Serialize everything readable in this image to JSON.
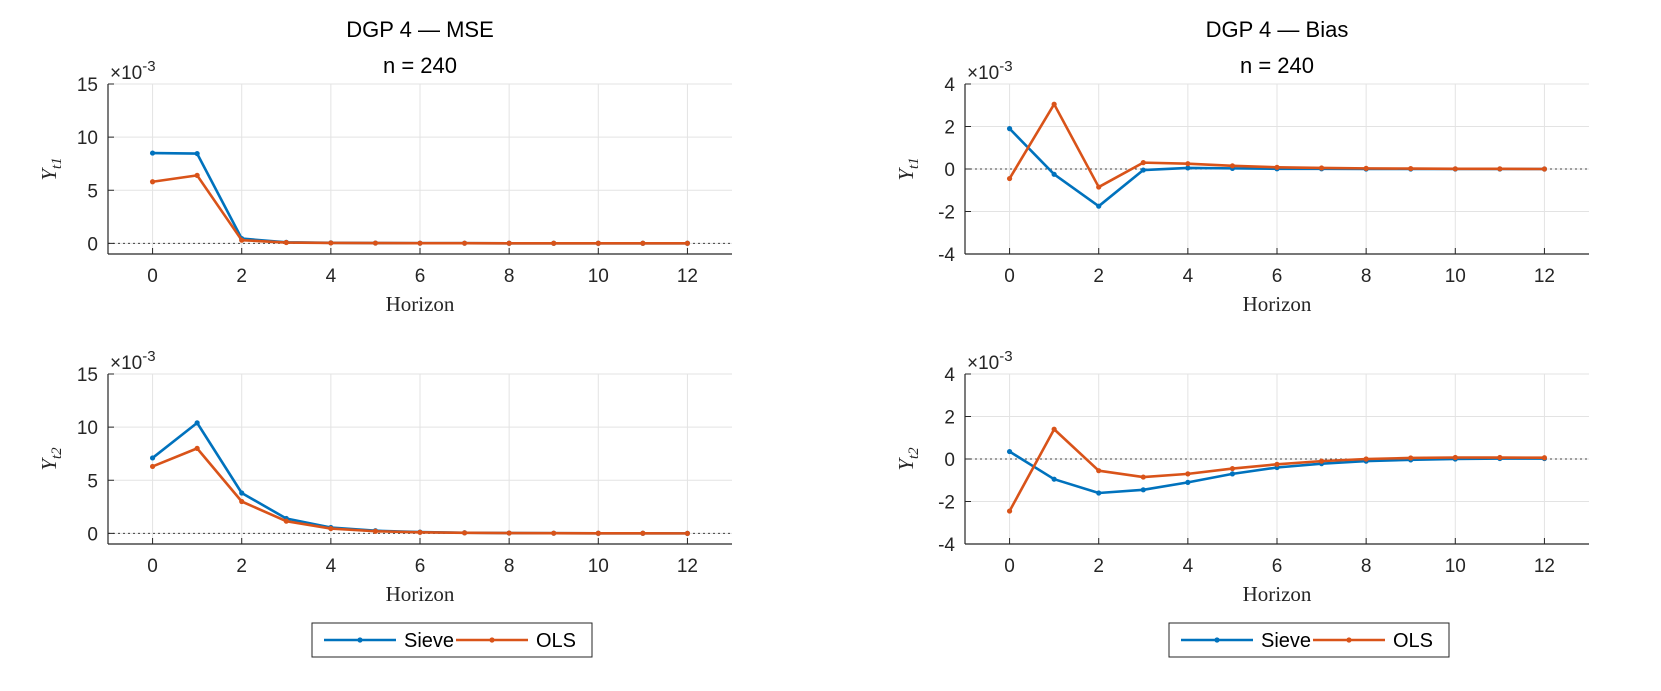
{
  "figure": {
    "legends": [
      {
        "entries": [
          "Sieve",
          "OLS"
        ]
      },
      {
        "entries": [
          "Sieve",
          "OLS"
        ]
      }
    ]
  },
  "colors": {
    "sieve": "#0072BD",
    "ols": "#D95319",
    "grid": "#e3e3e3",
    "axis": "#262626",
    "zero_line": "#404040"
  },
  "chart_data": [
    {
      "type": "line",
      "title": "DGP 4  —  MSE",
      "subtitle": "n = 240",
      "xlabel": "Horizon",
      "ylabel": "Y",
      "ylabel_sub": "t1",
      "exponent": "×10-3",
      "x": [
        0,
        1,
        2,
        3,
        4,
        5,
        6,
        7,
        8,
        9,
        10,
        11,
        12
      ],
      "xlim": [
        -1,
        13
      ],
      "ylim": [
        -1,
        15
      ],
      "xticks": [
        0,
        2,
        4,
        6,
        8,
        10,
        12
      ],
      "yticks": [
        0,
        5,
        10,
        15
      ],
      "grid": true,
      "zero_line": true,
      "series": [
        {
          "name": "Sieve",
          "values": [
            8.5,
            8.45,
            0.45,
            0.1,
            0.05,
            0.03,
            0.02,
            0.02,
            0.01,
            0.01,
            0.01,
            0.01,
            0.01
          ]
        },
        {
          "name": "OLS",
          "values": [
            5.8,
            6.4,
            0.3,
            0.08,
            0.04,
            0.03,
            0.02,
            0.02,
            0.01,
            0.01,
            0.01,
            0.01,
            0.01
          ]
        }
      ]
    },
    {
      "type": "line",
      "title": "DGP 4  —  Bias",
      "subtitle": "n = 240",
      "xlabel": "Horizon",
      "ylabel": "Y",
      "ylabel_sub": "t1",
      "exponent": "×10-3",
      "x": [
        0,
        1,
        2,
        3,
        4,
        5,
        6,
        7,
        8,
        9,
        10,
        11,
        12
      ],
      "xlim": [
        -1,
        13
      ],
      "ylim": [
        -4,
        4
      ],
      "xticks": [
        0,
        2,
        4,
        6,
        8,
        10,
        12
      ],
      "yticks": [
        -4,
        -2,
        0,
        2,
        4
      ],
      "grid": true,
      "zero_line": true,
      "series": [
        {
          "name": "Sieve",
          "values": [
            1.9,
            -0.25,
            -1.75,
            -0.05,
            0.05,
            0.03,
            0.01,
            0.01,
            0.0,
            0.0,
            0.0,
            0.0,
            0.0
          ]
        },
        {
          "name": "OLS",
          "values": [
            -0.45,
            3.05,
            -0.85,
            0.3,
            0.25,
            0.15,
            0.08,
            0.05,
            0.03,
            0.02,
            0.01,
            0.01,
            0.0
          ]
        }
      ]
    },
    {
      "type": "line",
      "title": "",
      "subtitle": "",
      "xlabel": "Horizon",
      "ylabel": "Y",
      "ylabel_sub": "t2",
      "exponent": "×10-3",
      "x": [
        0,
        1,
        2,
        3,
        4,
        5,
        6,
        7,
        8,
        9,
        10,
        11,
        12
      ],
      "xlim": [
        -1,
        13
      ],
      "ylim": [
        -1,
        15
      ],
      "xticks": [
        0,
        2,
        4,
        6,
        8,
        10,
        12
      ],
      "yticks": [
        0,
        5,
        10,
        15
      ],
      "grid": true,
      "zero_line": true,
      "series": [
        {
          "name": "Sieve",
          "values": [
            7.1,
            10.4,
            3.8,
            1.4,
            0.55,
            0.25,
            0.12,
            0.06,
            0.03,
            0.02,
            0.01,
            0.01,
            0.0
          ]
        },
        {
          "name": "OLS",
          "values": [
            6.3,
            8.0,
            3.0,
            1.15,
            0.45,
            0.2,
            0.1,
            0.05,
            0.03,
            0.02,
            0.01,
            0.01,
            0.0
          ]
        }
      ]
    },
    {
      "type": "line",
      "title": "",
      "subtitle": "",
      "xlabel": "Horizon",
      "ylabel": "Y",
      "ylabel_sub": "t2",
      "exponent": "×10-3",
      "x": [
        0,
        1,
        2,
        3,
        4,
        5,
        6,
        7,
        8,
        9,
        10,
        11,
        12
      ],
      "xlim": [
        -1,
        13
      ],
      "ylim": [
        -4,
        4
      ],
      "xticks": [
        0,
        2,
        4,
        6,
        8,
        10,
        12
      ],
      "yticks": [
        -4,
        -2,
        0,
        2,
        4
      ],
      "grid": true,
      "zero_line": true,
      "series": [
        {
          "name": "Sieve",
          "values": [
            0.35,
            -0.95,
            -1.6,
            -1.45,
            -1.1,
            -0.7,
            -0.4,
            -0.22,
            -0.1,
            -0.04,
            0.0,
            0.02,
            0.02
          ]
        },
        {
          "name": "OLS",
          "values": [
            -2.45,
            1.4,
            -0.55,
            -0.85,
            -0.7,
            -0.45,
            -0.25,
            -0.1,
            0.0,
            0.05,
            0.07,
            0.07,
            0.06
          ]
        }
      ]
    }
  ]
}
